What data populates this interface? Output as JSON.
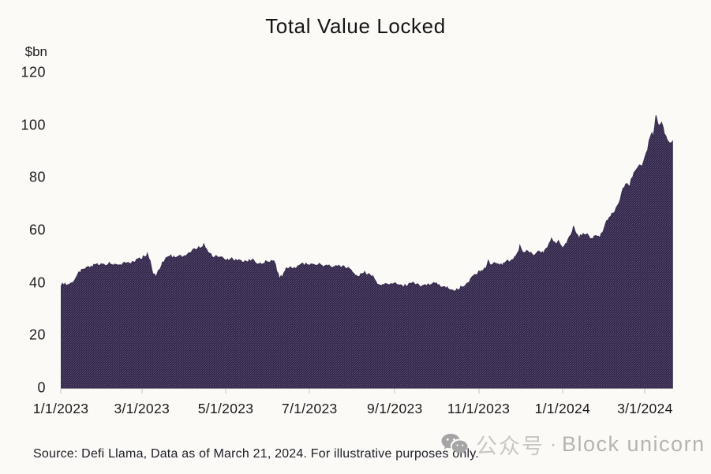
{
  "page": {
    "background": "#fbfaf7"
  },
  "chart_data": {
    "type": "area",
    "title": "Total Value Locked",
    "ylabel": "$bn",
    "xlabel": "",
    "ylim": [
      0,
      120
    ],
    "y_ticks": [
      0,
      20,
      40,
      60,
      80,
      100,
      120
    ],
    "x_ticks": [
      {
        "label": "1/1/2023",
        "day": 0
      },
      {
        "label": "3/1/2023",
        "day": 59
      },
      {
        "label": "5/1/2023",
        "day": 120
      },
      {
        "label": "7/1/2023",
        "day": 181
      },
      {
        "label": "9/1/2023",
        "day": 243
      },
      {
        "label": "11/1/2023",
        "day": 304
      },
      {
        "label": "1/1/2024",
        "day": 365
      },
      {
        "label": "3/1/2024",
        "day": 425
      }
    ],
    "x_range_days": [
      0,
      462
    ],
    "data_start_date": "1/1/2023",
    "data_end_date": "3/21/2024",
    "grid": false,
    "legend": "none",
    "noise_amplitude": 0.6,
    "fill_colors": {
      "base": "#34294a",
      "speckle1": "#5a4c74",
      "speckle2": "#473a60",
      "edge": "#392e50"
    },
    "series": [
      {
        "name": "Total Value Locked ($bn)",
        "points": [
          [
            0,
            39
          ],
          [
            3,
            39.5
          ],
          [
            6,
            39.2
          ],
          [
            9,
            40.5
          ],
          [
            12,
            43
          ],
          [
            15,
            44.5
          ],
          [
            18,
            45.2
          ],
          [
            21,
            45.8
          ],
          [
            24,
            46.5
          ],
          [
            27,
            47.2
          ],
          [
            30,
            46.8
          ],
          [
            33,
            46.3
          ],
          [
            36,
            47.6
          ],
          [
            39,
            47
          ],
          [
            42,
            46.4
          ],
          [
            45,
            47.3
          ],
          [
            48,
            47.8
          ],
          [
            51,
            47.2
          ],
          [
            54,
            48.3
          ],
          [
            57,
            49
          ],
          [
            60,
            49.8
          ],
          [
            63,
            51
          ],
          [
            65,
            48
          ],
          [
            67,
            43.5
          ],
          [
            69,
            42.5
          ],
          [
            71,
            44.5
          ],
          [
            74,
            47.5
          ],
          [
            77,
            49.3
          ],
          [
            80,
            50
          ],
          [
            83,
            49.5
          ],
          [
            86,
            50.5
          ],
          [
            89,
            49.8
          ],
          [
            92,
            51
          ],
          [
            95,
            52
          ],
          [
            98,
            52.8
          ],
          [
            101,
            53.5
          ],
          [
            104,
            54.5
          ],
          [
            106,
            53
          ],
          [
            108,
            51.5
          ],
          [
            110,
            49.8
          ],
          [
            113,
            50.3
          ],
          [
            116,
            50
          ],
          [
            119,
            49.4
          ],
          [
            122,
            48.6
          ],
          [
            125,
            49
          ],
          [
            128,
            48.4
          ],
          [
            131,
            48.8
          ],
          [
            134,
            47.9
          ],
          [
            137,
            48.4
          ],
          [
            140,
            48.8
          ],
          [
            143,
            47.6
          ],
          [
            146,
            47
          ],
          [
            149,
            47.8
          ],
          [
            152,
            48.2
          ],
          [
            155,
            48.5
          ],
          [
            157,
            45
          ],
          [
            159,
            41.8
          ],
          [
            161,
            42.5
          ],
          [
            164,
            45.3
          ],
          [
            167,
            46
          ],
          [
            170,
            45.4
          ],
          [
            173,
            46.3
          ],
          [
            176,
            47.2
          ],
          [
            179,
            46.8
          ],
          [
            182,
            47.3
          ],
          [
            185,
            46.7
          ],
          [
            188,
            47.1
          ],
          [
            191,
            46.4
          ],
          [
            194,
            46.8
          ],
          [
            197,
            46.2
          ],
          [
            200,
            46.6
          ],
          [
            203,
            46
          ],
          [
            206,
            46.4
          ],
          [
            209,
            45.6
          ],
          [
            212,
            44
          ],
          [
            215,
            42.6
          ],
          [
            218,
            43
          ],
          [
            221,
            43.8
          ],
          [
            224,
            43.2
          ],
          [
            227,
            42.4
          ],
          [
            230,
            39.8
          ],
          [
            233,
            38.9
          ],
          [
            236,
            39.3
          ],
          [
            239,
            39.8
          ],
          [
            242,
            40.2
          ],
          [
            245,
            39
          ],
          [
            248,
            38.6
          ],
          [
            251,
            38.9
          ],
          [
            254,
            39.4
          ],
          [
            257,
            39.8
          ],
          [
            260,
            39.1
          ],
          [
            263,
            38.7
          ],
          [
            266,
            38.9
          ],
          [
            269,
            39.2
          ],
          [
            272,
            39.7
          ],
          [
            275,
            39
          ],
          [
            278,
            38.6
          ],
          [
            281,
            38.2
          ],
          [
            284,
            37
          ],
          [
            286,
            36.6
          ],
          [
            288,
            37.4
          ],
          [
            291,
            38.2
          ],
          [
            294,
            39
          ],
          [
            297,
            40.5
          ],
          [
            300,
            42.6
          ],
          [
            303,
            43.6
          ],
          [
            306,
            44.6
          ],
          [
            309,
            45.3
          ],
          [
            311,
            48.1
          ],
          [
            313,
            47
          ],
          [
            316,
            47.6
          ],
          [
            319,
            46.6
          ],
          [
            322,
            47.1
          ],
          [
            325,
            48.1
          ],
          [
            328,
            48.6
          ],
          [
            331,
            50.1
          ],
          [
            334,
            53.6
          ],
          [
            336,
            51.6
          ],
          [
            339,
            52.1
          ],
          [
            342,
            51.1
          ],
          [
            345,
            50.6
          ],
          [
            348,
            52.1
          ],
          [
            351,
            51.4
          ],
          [
            354,
            53
          ],
          [
            357,
            56.6
          ],
          [
            360,
            54.6
          ],
          [
            362,
            55.5
          ],
          [
            365,
            53.1
          ],
          [
            368,
            55.5
          ],
          [
            371,
            58.5
          ],
          [
            373,
            61.2
          ],
          [
            375,
            59
          ],
          [
            377,
            57.1
          ],
          [
            380,
            58.6
          ],
          [
            383,
            58.1
          ],
          [
            386,
            56.6
          ],
          [
            388,
            57.6
          ],
          [
            390,
            58.1
          ],
          [
            392,
            57.1
          ],
          [
            395,
            60.5
          ],
          [
            397,
            63.6
          ],
          [
            399,
            65
          ],
          [
            401,
            66.1
          ],
          [
            403,
            66.6
          ],
          [
            405,
            69.5
          ],
          [
            407,
            71.7
          ],
          [
            409,
            75.6
          ],
          [
            411,
            77
          ],
          [
            412,
            77.6
          ],
          [
            414,
            76.5
          ],
          [
            415,
            79.6
          ],
          [
            417,
            81.5
          ],
          [
            419,
            83.1
          ],
          [
            421,
            85.1
          ],
          [
            423,
            84
          ],
          [
            425,
            87.6
          ],
          [
            427,
            90.5
          ],
          [
            428,
            93.6
          ],
          [
            430,
            97.6
          ],
          [
            431,
            95.5
          ],
          [
            433,
            103.1
          ],
          [
            435,
            99.8
          ],
          [
            437,
            101.5
          ],
          [
            439,
            97.1
          ],
          [
            441,
            95
          ],
          [
            443,
            93.2
          ],
          [
            445,
            93.8
          ]
        ]
      }
    ]
  },
  "footer": {
    "source": "Source: Defi Llama, Data as of March 21, 2024. For illustrative purposes only.",
    "watermark": {
      "icon": "wechat-icon",
      "cn": "公众号",
      "sep": "·",
      "en": "Block unicorn"
    }
  }
}
